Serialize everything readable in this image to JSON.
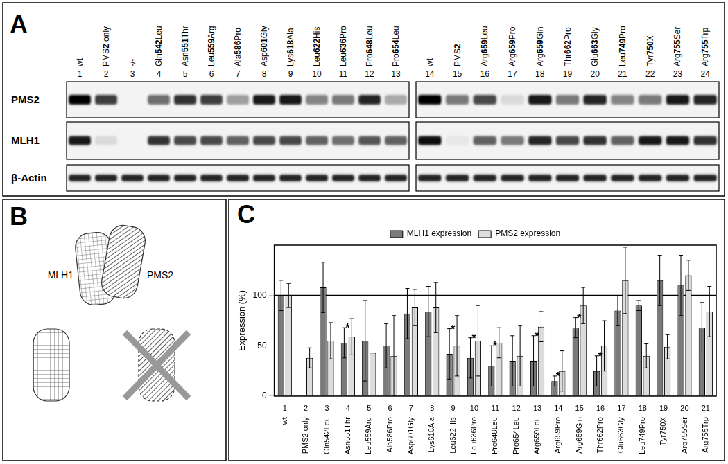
{
  "panel_labels": [
    "A",
    "B",
    "C"
  ],
  "blot": {
    "row_labels": [
      "PMS2",
      "MLH1",
      "β-Actin"
    ],
    "blots": [
      {
        "lanes": [
          {
            "number": 1,
            "name": "wt"
          },
          {
            "number": 2,
            "name": "PMS2 only"
          },
          {
            "number": 3,
            "name": "-/-"
          },
          {
            "number": 4,
            "name": "Gln542Leu"
          },
          {
            "number": 5,
            "name": "Asn551Thr"
          },
          {
            "number": 6,
            "name": "Leu559Arg"
          },
          {
            "number": 7,
            "name": "Ala586Pro"
          },
          {
            "number": 8,
            "name": "Asp601Gly"
          },
          {
            "number": 9,
            "name": "Lys618Ala"
          },
          {
            "number": 10,
            "name": "Leu622His"
          },
          {
            "number": 11,
            "name": "Leu636Pro"
          },
          {
            "number": 12,
            "name": "Pro648Leu"
          },
          {
            "number": 13,
            "name": "Pro654Leu"
          }
        ],
        "band_intensity": [
          [
            1.0,
            0.75,
            0,
            0.55,
            0.8,
            0.75,
            0.35,
            0.9,
            0.9,
            0.45,
            0.5,
            0.85,
            0.3
          ],
          [
            0.9,
            0.1,
            0,
            0.8,
            0.7,
            0.7,
            0.6,
            0.7,
            0.7,
            0.6,
            0.55,
            0.65,
            0.6
          ],
          [
            0.85,
            0.85,
            0.85,
            0.85,
            0.85,
            0.85,
            0.85,
            0.85,
            0.85,
            0.85,
            0.85,
            0.85,
            0.85
          ]
        ]
      },
      {
        "lanes": [
          {
            "number": 14,
            "name": "wt"
          },
          {
            "number": 15,
            "name": "PMS2"
          },
          {
            "number": 16,
            "name": "Arg659Leu"
          },
          {
            "number": 17,
            "name": "Arg659Pro"
          },
          {
            "number": 18,
            "name": "Arg659Gln"
          },
          {
            "number": 19,
            "name": "Thr662Pro"
          },
          {
            "number": 20,
            "name": "Glu663Gly"
          },
          {
            "number": 21,
            "name": "Leu749Pro"
          },
          {
            "number": 22,
            "name": "Tyr750X"
          },
          {
            "number": 23,
            "name": "Arg755Ser"
          },
          {
            "number": 24,
            "name": "Arg755Trp"
          }
        ],
        "band_intensity": [
          [
            1.0,
            0.5,
            0.7,
            0.1,
            0.9,
            0.5,
            0.85,
            0.45,
            0.5,
            0.9,
            0.85
          ],
          [
            0.95,
            0.05,
            0.6,
            0.5,
            0.85,
            0.7,
            0.8,
            0.6,
            0.9,
            0.9,
            0.8
          ],
          [
            0.85,
            0.85,
            0.85,
            0.85,
            0.85,
            0.85,
            0.85,
            0.85,
            0.85,
            0.85,
            0.85
          ]
        ]
      }
    ]
  },
  "diagram": {
    "labels": [
      "MLH1",
      "PMS2"
    ]
  },
  "chart_data": {
    "type": "bar",
    "y_label": "Expression (%)",
    "categories": [
      "wt",
      "PMS2 only",
      "Gln542Leu",
      "Asn551Thr",
      "Leu559Arg",
      "Ala586Pro",
      "Asp601Gly",
      "Lys618Ala",
      "Leu622His",
      "Leu636Pro",
      "Pro648Leu",
      "Pro654Leu",
      "Arg659Leu",
      "Arg659Pro",
      "Arg659Gln",
      "Thr662Pro",
      "Glu663Gly",
      "Leu749Pro",
      "Tyr750X",
      "Arg755Ser",
      "Arg755Trp"
    ],
    "category_numbers": [
      1,
      2,
      3,
      4,
      5,
      6,
      7,
      8,
      9,
      10,
      11,
      12,
      13,
      14,
      15,
      16,
      17,
      18,
      19,
      20,
      21
    ],
    "series": [
      {
        "name": "MLH1 expression",
        "color": "#7a7a7a",
        "values": [
          100,
          null,
          108,
          53,
          55,
          50,
          82,
          84,
          42,
          38,
          30,
          35,
          35,
          15,
          68,
          25,
          85,
          90,
          115,
          110,
          68
        ],
        "errors": [
          15,
          null,
          25,
          15,
          40,
          22,
          25,
          25,
          25,
          20,
          20,
          25,
          25,
          5,
          10,
          15,
          15,
          5,
          25,
          30,
          25
        ]
      },
      {
        "name": "PMS2 expression",
        "color": "#dcdcdc",
        "values": [
          100,
          38,
          55,
          59,
          43,
          40,
          88,
          88,
          50,
          55,
          53,
          40,
          69,
          25,
          90,
          50,
          115,
          40,
          49,
          120,
          84
        ],
        "errors": [
          12,
          10,
          18,
          18,
          null,
          40,
          18,
          25,
          30,
          35,
          15,
          30,
          15,
          20,
          18,
          25,
          33,
          12,
          12,
          15,
          25
        ]
      }
    ],
    "reference_line": 100,
    "annotations": [
      {
        "category": 4,
        "text": "*"
      },
      {
        "category": 9,
        "text": "*"
      },
      {
        "category": 10,
        "text": "*"
      },
      {
        "category": 11,
        "text": "*"
      },
      {
        "category": 13,
        "text": "*"
      },
      {
        "category": 14,
        "text": "*"
      },
      {
        "category": 15,
        "text": "*"
      },
      {
        "category": 16,
        "text": "*"
      }
    ],
    "ylim": [
      0,
      150
    ],
    "yticks": [
      0,
      50,
      100
    ],
    "grid": true,
    "legend": "top"
  }
}
